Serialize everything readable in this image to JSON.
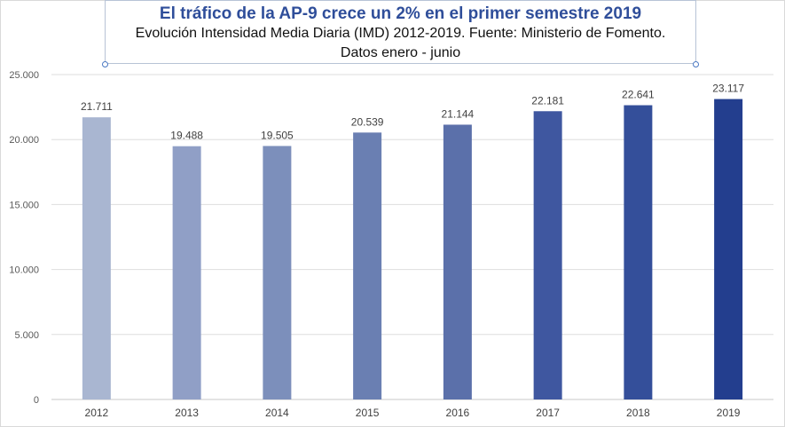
{
  "chart_data": {
    "type": "bar",
    "title": "El tráfico de la AP-9 crece un 2% en el primer semestre 2019",
    "subtitle": "Evolución Intensidad Media Diaria (IMD) 2012-2019. Fuente: Ministerio de Fomento.",
    "subtitle2": "Datos enero - junio",
    "categories": [
      "2012",
      "2013",
      "2014",
      "2015",
      "2016",
      "2017",
      "2018",
      "2019"
    ],
    "values": [
      21711,
      19488,
      19505,
      20539,
      21144,
      22181,
      22641,
      23117
    ],
    "value_labels": [
      "21.711",
      "19.488",
      "19.505",
      "20.539",
      "21.144",
      "22.181",
      "22.641",
      "23.117"
    ],
    "y_ticks": [
      0,
      5000,
      10000,
      15000,
      20000,
      25000
    ],
    "y_tick_labels": [
      "0",
      "5.000",
      "10.000",
      "15.000",
      "20.000",
      "25.000"
    ],
    "ylim": [
      0,
      25000
    ],
    "grid": true,
    "legend": "none",
    "bar_colors": [
      "#a9b6d1",
      "#909fc6",
      "#7c8fbb",
      "#6a7fb2",
      "#5b70aa",
      "#3f57a0",
      "#344f9a",
      "#233e8e"
    ]
  }
}
